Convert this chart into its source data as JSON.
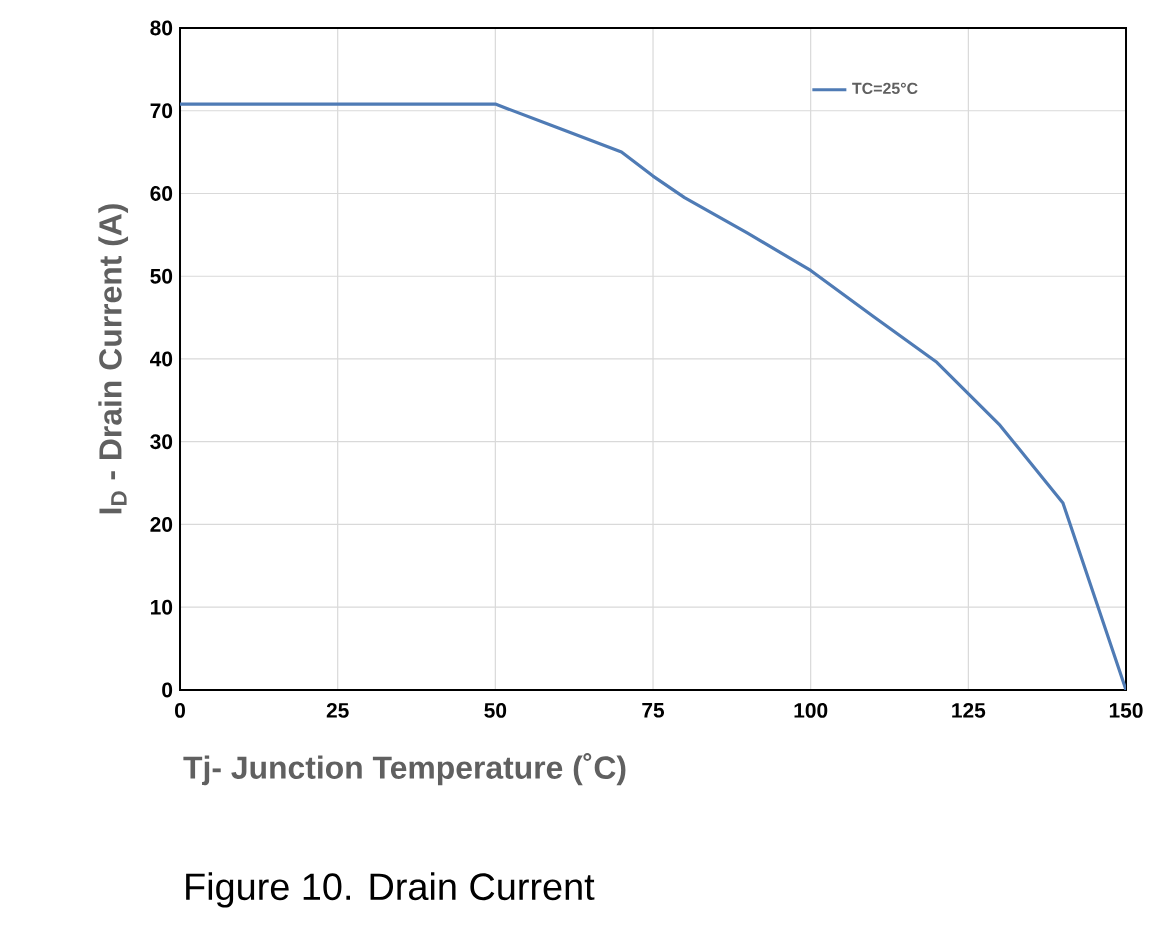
{
  "chart_data": {
    "type": "line",
    "xlabel": "Tj- Junction Temperature (˚C)",
    "ylabel": "I$_{D}$ - Drain Current (A)",
    "annotations": [
      "Figure 10. Drain Current"
    ],
    "x": [
      0,
      50,
      60,
      70,
      75,
      80,
      90,
      100,
      110,
      120,
      130,
      140,
      150
    ],
    "series": [
      {
        "name": "TC=25°C",
        "color": "#4f7bb5",
        "values": [
          70.8,
          70.8,
          67.9,
          65,
          62.1,
          59.5,
          55.2,
          50.7,
          45.1,
          39.6,
          32.0,
          22.6,
          0
        ]
      }
    ],
    "xlim": [
      0,
      150
    ],
    "xticks": [
      0,
      25,
      50,
      75,
      100,
      125,
      150
    ],
    "ylim": [
      0,
      80
    ],
    "yticks": [
      0,
      10,
      20,
      30,
      40,
      50,
      60,
      70,
      80
    ],
    "grid": true,
    "legend": "top right",
    "marker": "none",
    "line_style": "solid"
  }
}
